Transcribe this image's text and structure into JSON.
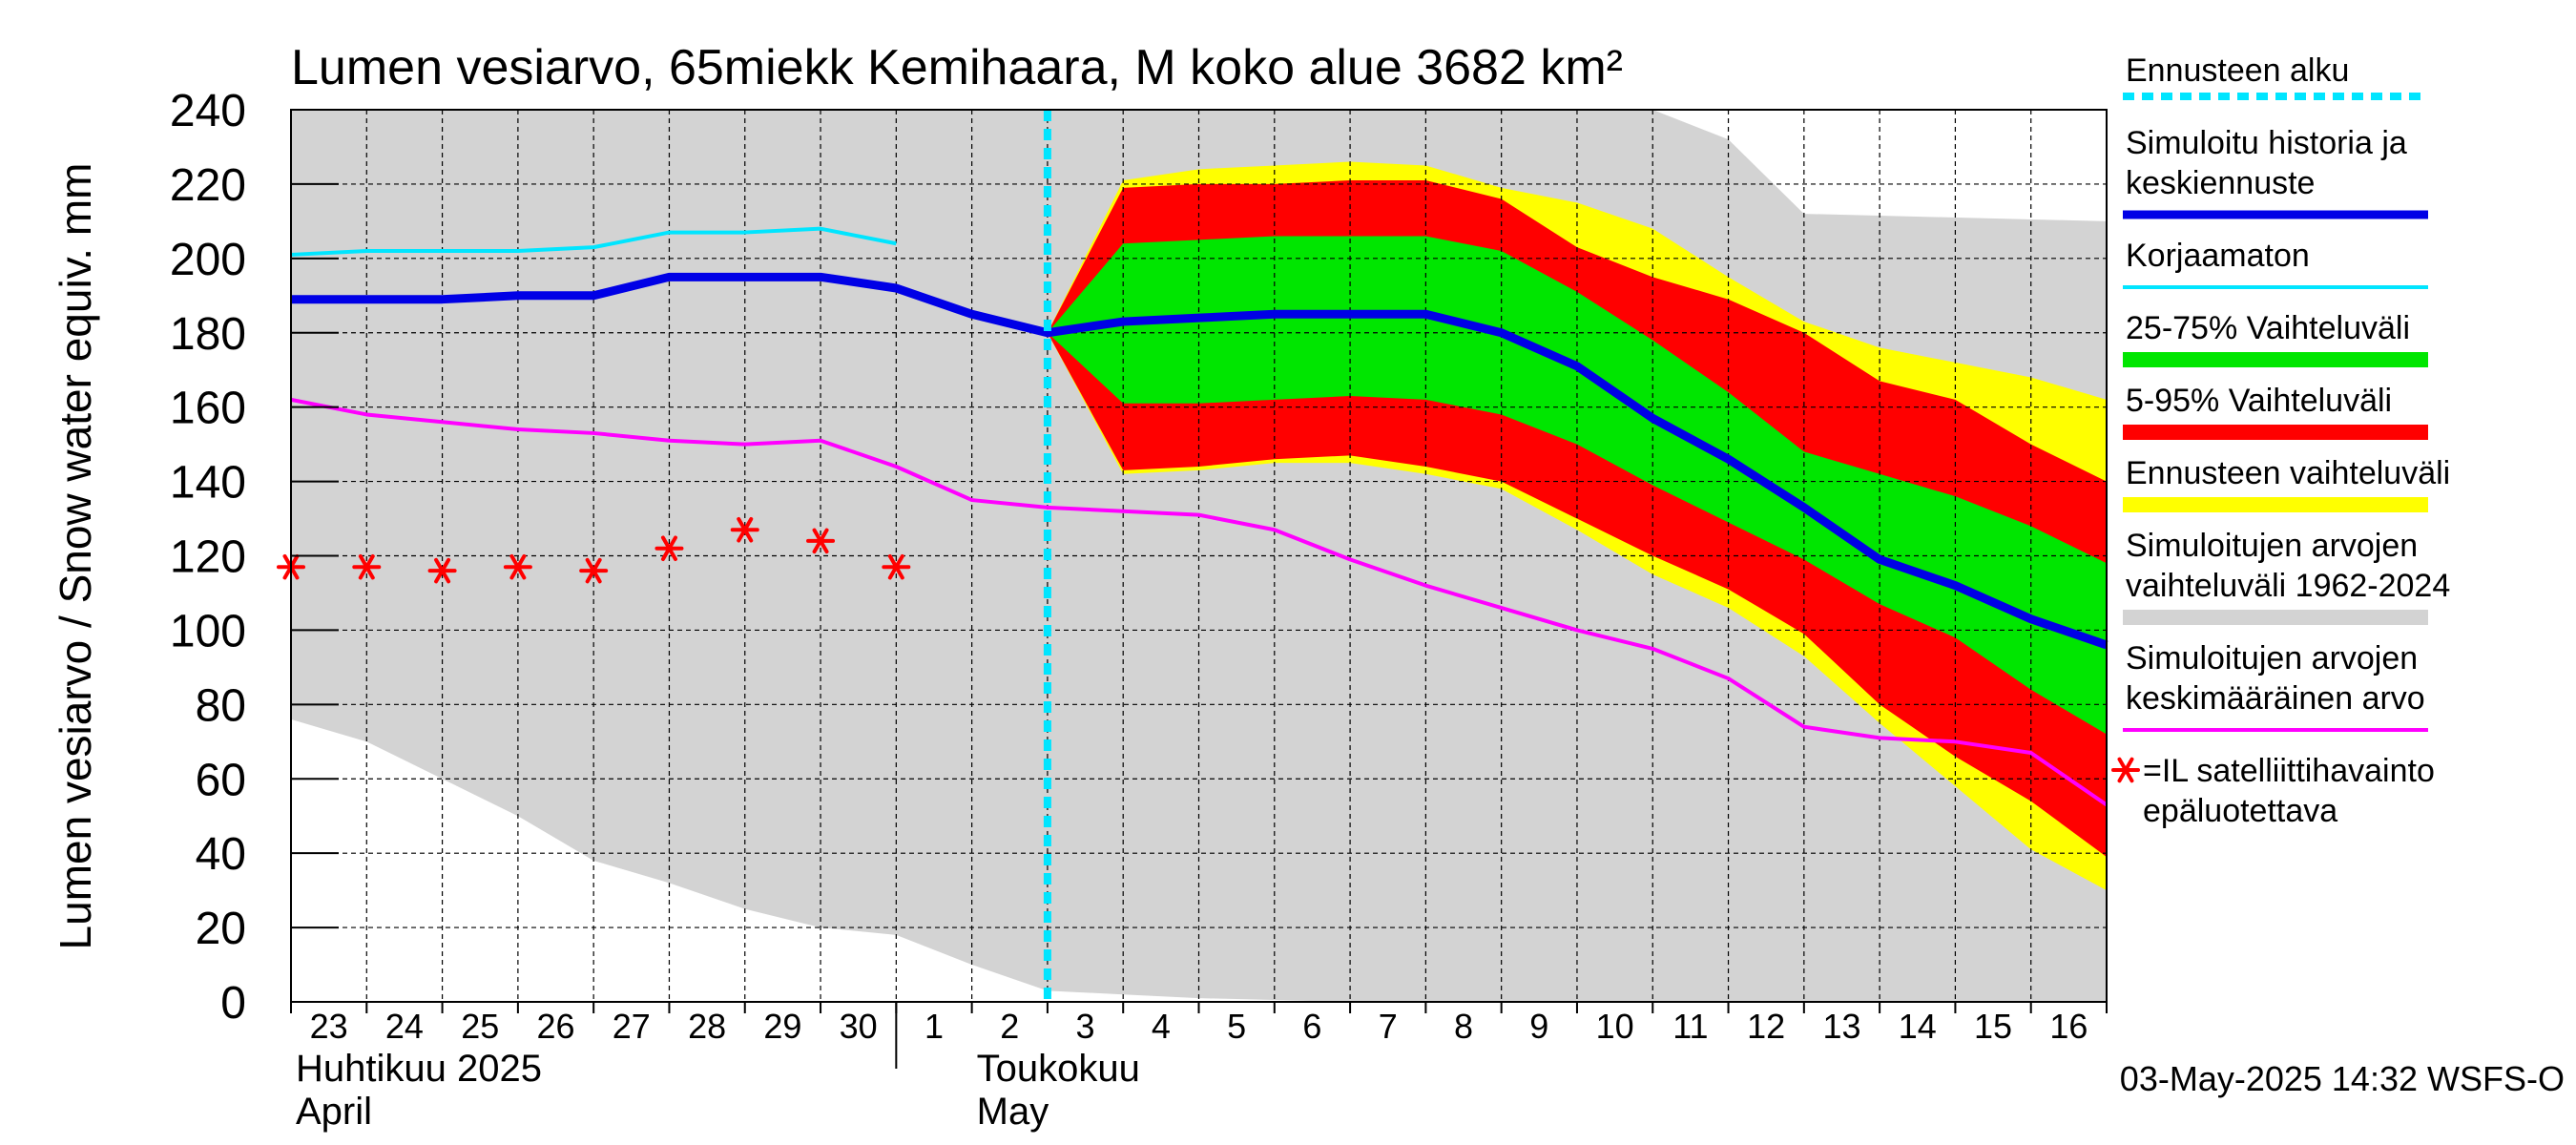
{
  "chart_data": {
    "type": "area",
    "title": "Lumen vesiarvo, 65miekk Kemihaara, M koko alue 3682 km²",
    "ylabel": "Lumen vesiarvo / Snow water equiv.    mm",
    "ylim": [
      0,
      240
    ],
    "yticks": [
      0,
      20,
      40,
      60,
      80,
      100,
      120,
      140,
      160,
      180,
      200,
      220,
      240
    ],
    "grid": true,
    "x_domain": [
      "2025-04-23",
      "2025-05-17"
    ],
    "day_labels": [
      "23",
      "24",
      "25",
      "26",
      "27",
      "28",
      "29",
      "30",
      "1",
      "2",
      "3",
      "4",
      "5",
      "6",
      "7",
      "8",
      "9",
      "10",
      "11",
      "12",
      "13",
      "14",
      "15",
      "16"
    ],
    "month_labels": [
      {
        "date": "2025-04-23",
        "line1": "Huhtikuu  2025",
        "line2": "April"
      },
      {
        "date": "2025-05-02",
        "line1": "Toukokuu",
        "line2": "May"
      }
    ],
    "month_separator": "2025-05-01",
    "forecast_start": "2025-05-03",
    "timestamp": "03-May-2025 14:32 WSFS-O",
    "colors": {
      "historic_range": "#d3d3d3",
      "forecast_range": "#ffff00",
      "p5_95": "#ff0000",
      "p25_75": "#00e600",
      "simulated": "#0000e6",
      "uncorrected": "#00e5ff",
      "mean": "#ff00ff",
      "satellite": "#ff0000",
      "forecast_start": "#00e5ff"
    },
    "bands": [
      {
        "name": "Simuloitujen arvojen vaihteluväli 1962-2024",
        "upper": [
          [
            0,
            240
          ],
          [
            18,
            240
          ],
          [
            19,
            232
          ],
          [
            20,
            212
          ],
          [
            24,
            210
          ]
        ],
        "lower": [
          [
            0,
            76
          ],
          [
            1,
            70
          ],
          [
            2,
            60
          ],
          [
            3,
            50
          ],
          [
            4,
            38
          ],
          [
            5,
            32
          ],
          [
            6,
            25
          ],
          [
            7,
            20
          ],
          [
            8,
            18
          ],
          [
            9,
            10
          ],
          [
            10,
            3
          ],
          [
            11,
            2
          ],
          [
            12,
            1
          ],
          [
            13,
            0.5
          ],
          [
            14,
            0
          ],
          [
            24,
            0
          ]
        ]
      },
      {
        "name": "Ennusteen vaihteluväli",
        "upper": [
          [
            10,
            180
          ],
          [
            11,
            221
          ],
          [
            12,
            224
          ],
          [
            13,
            225
          ],
          [
            14,
            226
          ],
          [
            15,
            225
          ],
          [
            16,
            219
          ],
          [
            17,
            215
          ],
          [
            18,
            208
          ],
          [
            19,
            195
          ],
          [
            20,
            183
          ],
          [
            21,
            176
          ],
          [
            22,
            172
          ],
          [
            23,
            168
          ],
          [
            24,
            162
          ]
        ],
        "lower": [
          [
            10,
            180
          ],
          [
            11,
            142
          ],
          [
            12,
            143
          ],
          [
            13,
            145
          ],
          [
            14,
            145
          ],
          [
            15,
            142
          ],
          [
            16,
            138
          ],
          [
            17,
            127
          ],
          [
            18,
            115
          ],
          [
            19,
            106
          ],
          [
            20,
            93
          ],
          [
            21,
            75
          ],
          [
            22,
            58
          ],
          [
            23,
            41
          ],
          [
            24,
            30
          ]
        ]
      },
      {
        "name": "5-95% Vaihteluväli",
        "upper": [
          [
            10,
            180
          ],
          [
            11,
            219
          ],
          [
            12,
            220
          ],
          [
            13,
            220
          ],
          [
            14,
            221
          ],
          [
            15,
            221
          ],
          [
            16,
            216
          ],
          [
            17,
            203
          ],
          [
            18,
            195
          ],
          [
            19,
            189
          ],
          [
            20,
            180
          ],
          [
            21,
            167
          ],
          [
            22,
            162
          ],
          [
            23,
            150
          ],
          [
            24,
            140
          ]
        ],
        "lower": [
          [
            10,
            180
          ],
          [
            11,
            143
          ],
          [
            12,
            144
          ],
          [
            13,
            146
          ],
          [
            14,
            147
          ],
          [
            15,
            144
          ],
          [
            16,
            140
          ],
          [
            17,
            130
          ],
          [
            18,
            120
          ],
          [
            19,
            111
          ],
          [
            20,
            99
          ],
          [
            21,
            80
          ],
          [
            22,
            66
          ],
          [
            23,
            54
          ],
          [
            24,
            39
          ]
        ]
      },
      {
        "name": "25-75% Vaihteluväli",
        "upper": [
          [
            10,
            180
          ],
          [
            11,
            204
          ],
          [
            12,
            205
          ],
          [
            13,
            206
          ],
          [
            14,
            206
          ],
          [
            15,
            206
          ],
          [
            16,
            202
          ],
          [
            17,
            191
          ],
          [
            18,
            178
          ],
          [
            19,
            164
          ],
          [
            20,
            148
          ],
          [
            21,
            142
          ],
          [
            22,
            136
          ],
          [
            23,
            128
          ],
          [
            24,
            118
          ]
        ],
        "lower": [
          [
            10,
            180
          ],
          [
            11,
            161
          ],
          [
            12,
            161
          ],
          [
            13,
            162
          ],
          [
            14,
            163
          ],
          [
            15,
            162
          ],
          [
            16,
            158
          ],
          [
            17,
            150
          ],
          [
            18,
            139
          ],
          [
            19,
            129
          ],
          [
            20,
            119
          ],
          [
            21,
            107
          ],
          [
            22,
            98
          ],
          [
            23,
            84
          ],
          [
            24,
            72
          ]
        ]
      }
    ],
    "series": [
      {
        "name": "Korjaamaton",
        "points": [
          [
            0,
            201
          ],
          [
            1,
            202
          ],
          [
            2,
            202
          ],
          [
            3,
            202
          ],
          [
            4,
            203
          ],
          [
            5,
            207
          ],
          [
            6,
            207
          ],
          [
            7,
            208
          ],
          [
            8,
            204
          ]
        ]
      },
      {
        "name": "Simuloitujen arvojen keskimääräinen arvo",
        "points": [
          [
            0,
            162
          ],
          [
            1,
            158
          ],
          [
            2,
            156
          ],
          [
            3,
            154
          ],
          [
            4,
            153
          ],
          [
            5,
            151
          ],
          [
            6,
            150
          ],
          [
            7,
            151
          ],
          [
            8,
            144
          ],
          [
            9,
            135
          ],
          [
            10,
            133
          ],
          [
            11,
            132
          ],
          [
            12,
            131
          ],
          [
            13,
            127
          ],
          [
            14,
            119
          ],
          [
            15,
            112
          ],
          [
            16,
            106
          ],
          [
            17,
            100
          ],
          [
            18,
            95
          ],
          [
            19,
            87
          ],
          [
            20,
            74
          ],
          [
            21,
            71
          ],
          [
            22,
            70
          ],
          [
            23,
            67
          ],
          [
            24,
            53
          ]
        ]
      },
      {
        "name": "Simuloitu historia ja keskiennuste",
        "points": [
          [
            0,
            189
          ],
          [
            1,
            189
          ],
          [
            2,
            189
          ],
          [
            3,
            190
          ],
          [
            4,
            190
          ],
          [
            5,
            195
          ],
          [
            6,
            195
          ],
          [
            7,
            195
          ],
          [
            8,
            192
          ],
          [
            9,
            185
          ],
          [
            10,
            180
          ],
          [
            11,
            183
          ],
          [
            12,
            184
          ],
          [
            13,
            185
          ],
          [
            14,
            185
          ],
          [
            15,
            185
          ],
          [
            16,
            180
          ],
          [
            17,
            171
          ],
          [
            18,
            157
          ],
          [
            19,
            146
          ],
          [
            20,
            133
          ],
          [
            21,
            119
          ],
          [
            22,
            112
          ],
          [
            23,
            103
          ],
          [
            24,
            96
          ]
        ]
      }
    ],
    "satellite_points": [
      [
        0,
        117
      ],
      [
        1,
        117
      ],
      [
        2,
        116
      ],
      [
        3,
        117
      ],
      [
        4,
        116
      ],
      [
        5,
        122
      ],
      [
        6,
        127
      ],
      [
        7,
        124
      ],
      [
        8,
        117
      ]
    ],
    "legend": [
      {
        "key": "forecast_start",
        "style": "dashed",
        "lines": [
          "Ennusteen alku"
        ]
      },
      {
        "key": "simulated",
        "style": "line-thick",
        "lines": [
          "Simuloitu historia ja",
          "keskiennuste"
        ]
      },
      {
        "key": "uncorrected",
        "style": "line",
        "lines": [
          "Korjaamaton"
        ]
      },
      {
        "key": "p25_75",
        "style": "band",
        "lines": [
          "25-75% Vaihteluväli"
        ]
      },
      {
        "key": "p5_95",
        "style": "band",
        "lines": [
          "5-95% Vaihteluväli"
        ]
      },
      {
        "key": "forecast_range",
        "style": "band",
        "lines": [
          "Ennusteen vaihteluväli"
        ]
      },
      {
        "key": "historic_range",
        "style": "band",
        "lines": [
          "Simuloitujen arvojen",
          "vaihteluväli 1962-2024"
        ]
      },
      {
        "key": "mean",
        "style": "line",
        "lines": [
          "Simuloitujen arvojen",
          "keskimääräinen arvo"
        ]
      },
      {
        "key": "satellite",
        "style": "star",
        "lines": [
          "=IL satelliittihavainto",
          "epäluotettava"
        ]
      }
    ]
  }
}
